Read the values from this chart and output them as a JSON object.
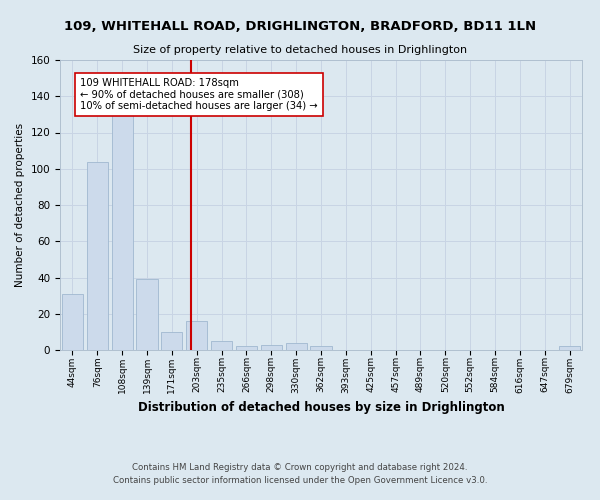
{
  "title": "109, WHITEHALL ROAD, DRIGHLINGTON, BRADFORD, BD11 1LN",
  "subtitle": "Size of property relative to detached houses in Drighlington",
  "xlabel": "Distribution of detached houses by size in Drighlington",
  "ylabel": "Number of detached properties",
  "footer_line1": "Contains HM Land Registry data © Crown copyright and database right 2024.",
  "footer_line2": "Contains public sector information licensed under the Open Government Licence v3.0.",
  "bin_labels": [
    "44sqm",
    "76sqm",
    "108sqm",
    "139sqm",
    "171sqm",
    "203sqm",
    "235sqm",
    "266sqm",
    "298sqm",
    "330sqm",
    "362sqm",
    "393sqm",
    "425sqm",
    "457sqm",
    "489sqm",
    "520sqm",
    "552sqm",
    "584sqm",
    "616sqm",
    "647sqm",
    "679sqm"
  ],
  "bar_heights": [
    31,
    104,
    131,
    39,
    10,
    16,
    5,
    2,
    3,
    4,
    2,
    0,
    0,
    0,
    0,
    0,
    0,
    0,
    0,
    0,
    2
  ],
  "bar_color": "#ccdaeb",
  "bar_edge_color": "#a0b8d0",
  "vline_x": 4.75,
  "vline_color": "#cc0000",
  "annotation_text": "109 WHITEHALL ROAD: 178sqm\n← 90% of detached houses are smaller (308)\n10% of semi-detached houses are larger (34) →",
  "annotation_box_color": "#ffffff",
  "annotation_box_edge_color": "#cc0000",
  "ylim": [
    0,
    160
  ],
  "yticks": [
    0,
    20,
    40,
    60,
    80,
    100,
    120,
    140,
    160
  ],
  "grid_color": "#c8d4e4",
  "background_color": "#dce8f0",
  "plot_bg_color": "#dce8f0"
}
